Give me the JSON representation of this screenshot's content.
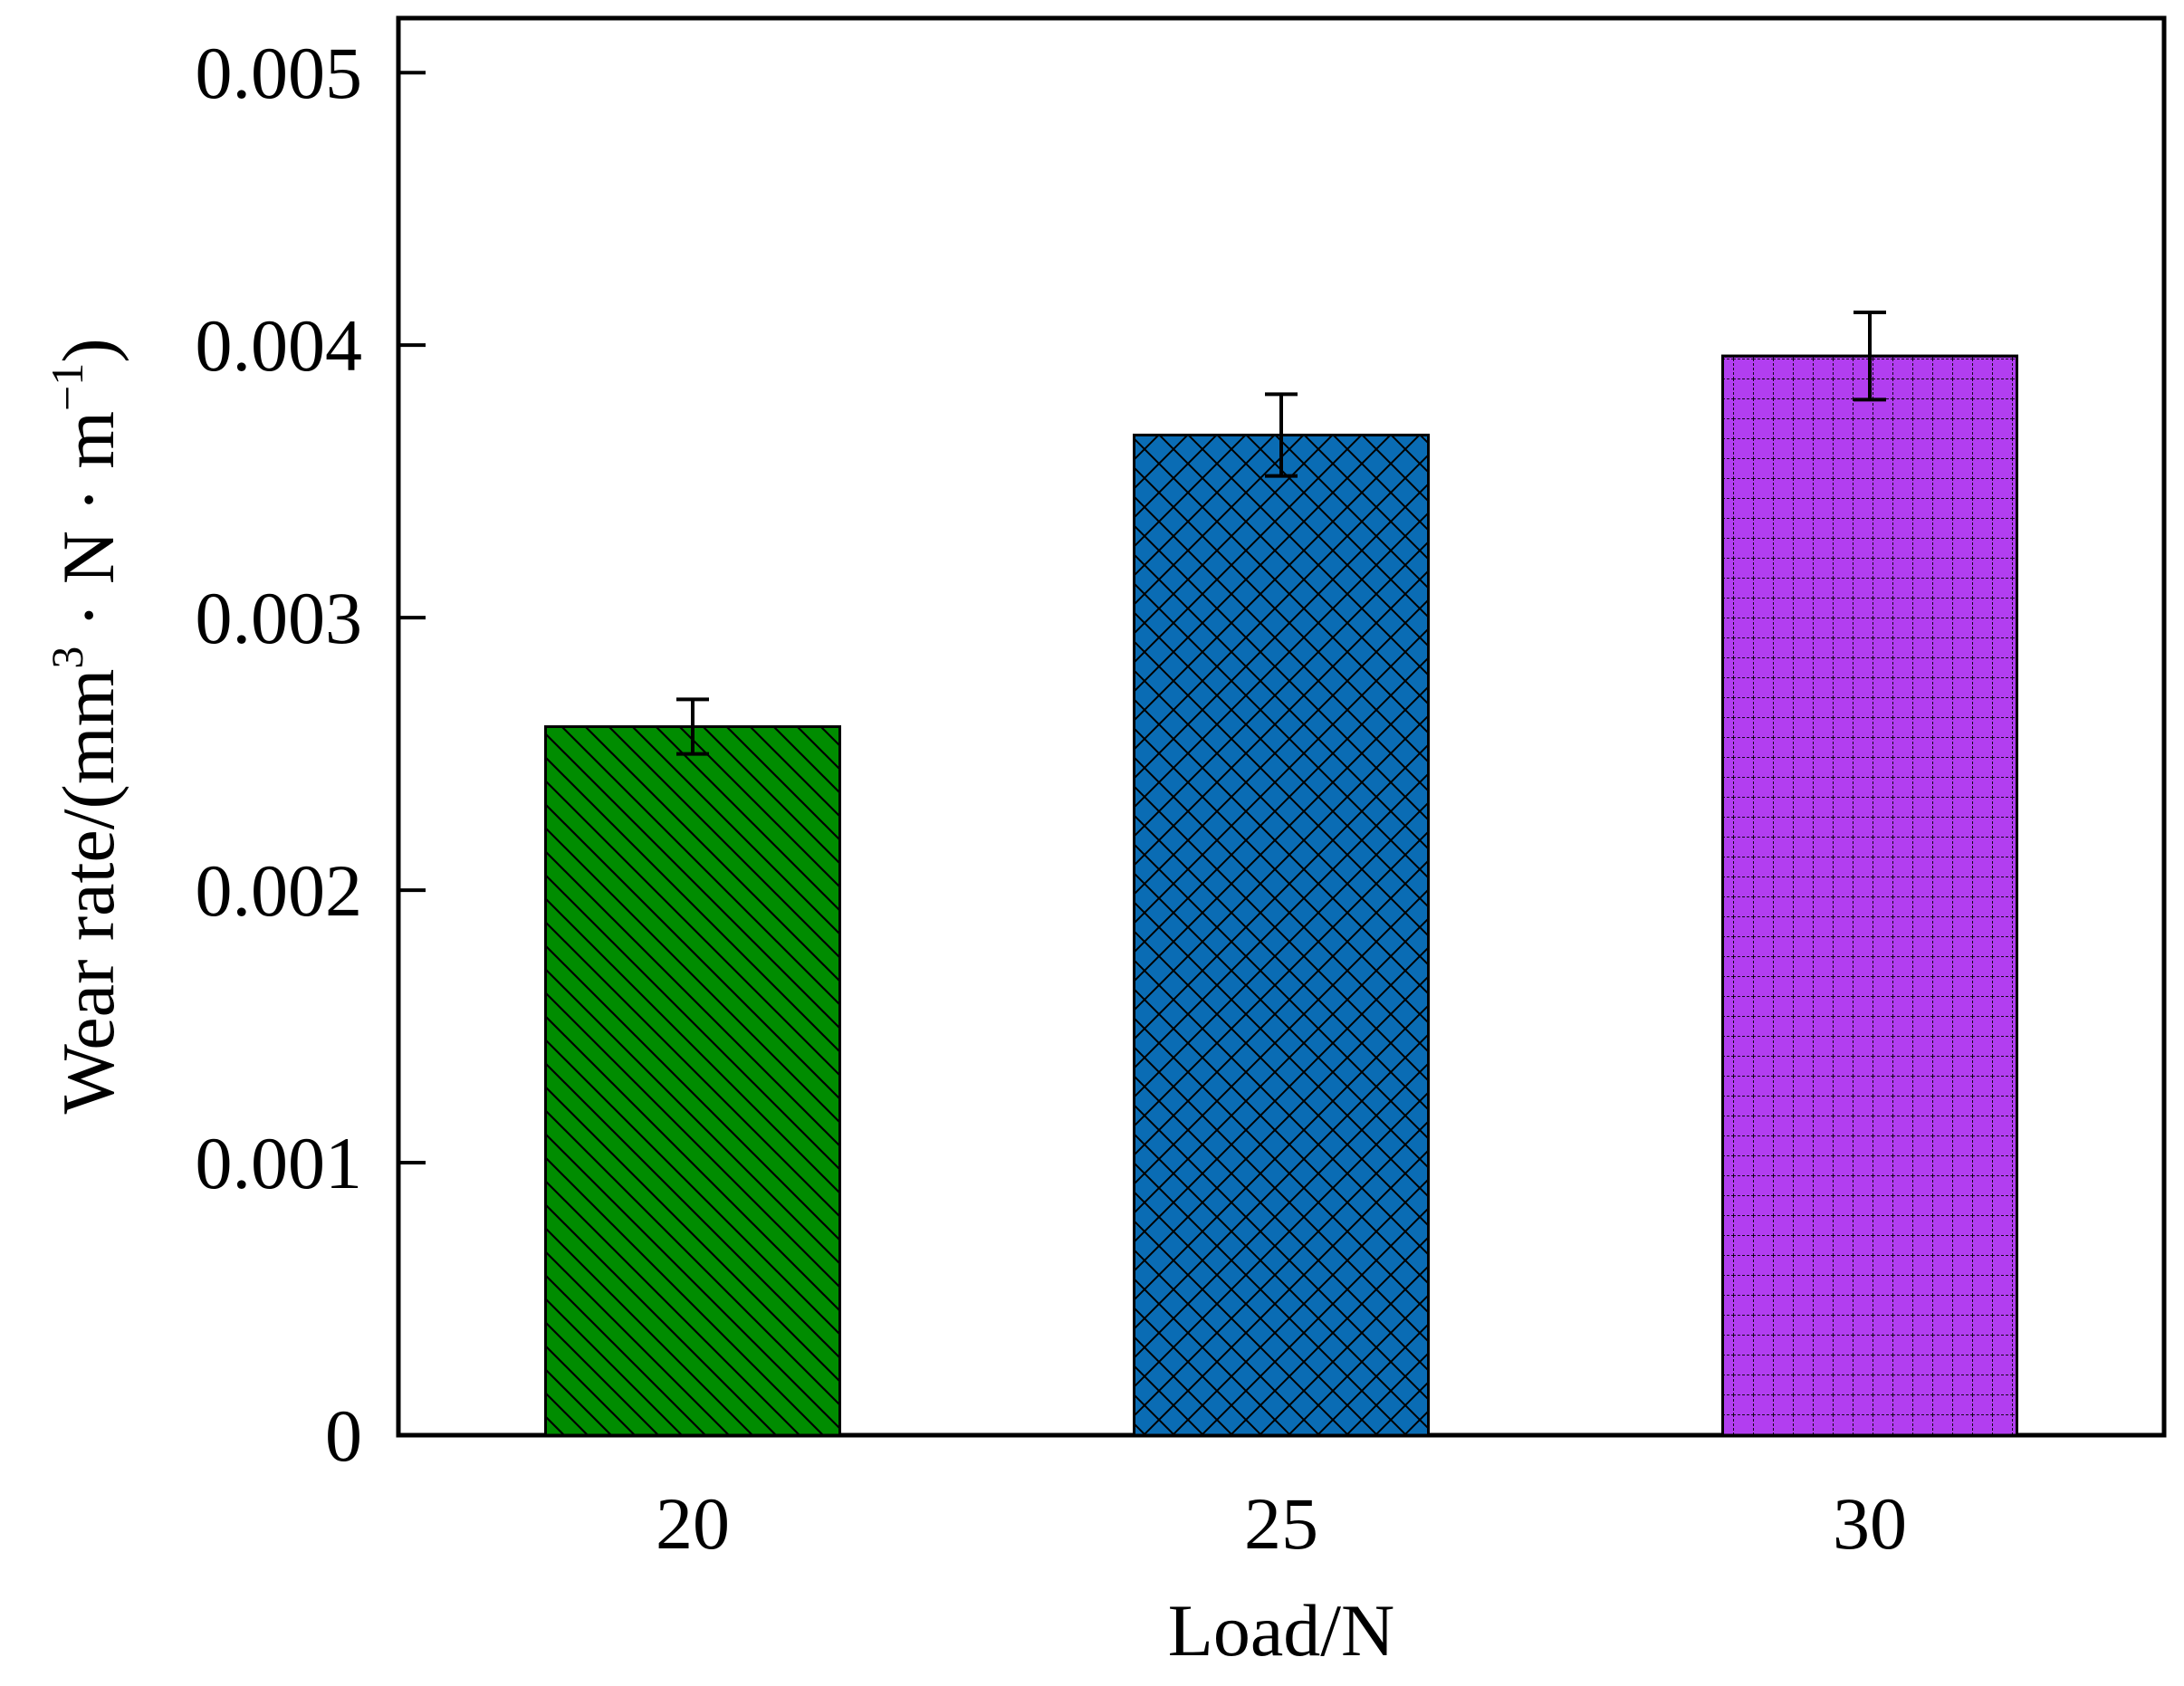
{
  "chart_data": {
    "type": "bar",
    "title": "",
    "xlabel": "Load/N",
    "ylabel": {
      "prefix": "Wear rate/(mm",
      "superscript": "3",
      "middle": " · N · m",
      "superscript2": "−1",
      "suffix": ")"
    },
    "categories": [
      "20",
      "25",
      "30"
    ],
    "values": [
      0.0026,
      0.00367,
      0.00396
    ],
    "errors": [
      0.0001,
      0.00015,
      0.00016
    ],
    "ylim": [
      0,
      0.0052
    ],
    "yticks": [
      0,
      0.001,
      0.002,
      0.003,
      0.004,
      0.005
    ],
    "ytick_labels": [
      "0",
      "0.001",
      "0.002",
      "0.003",
      "0.004",
      "0.005"
    ],
    "grid": false,
    "legend": "none",
    "bar_colors": [
      "#008c00",
      "#0a6cb4",
      "#b23ef0"
    ],
    "bar_patterns": [
      "diagonal-hatch",
      "crosshatch",
      "grid"
    ]
  }
}
